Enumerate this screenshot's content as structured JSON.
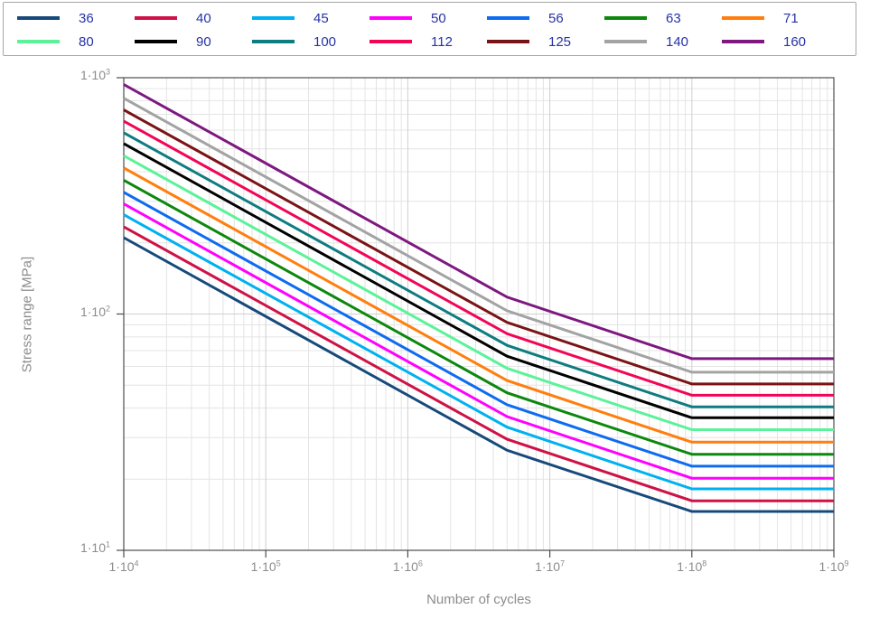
{
  "chart_data": {
    "type": "line",
    "title": "",
    "xlabel": "Number of cycles",
    "ylabel": "Stress range [MPa]",
    "x_scale": "log",
    "y_scale": "log",
    "xlim": [
      10000,
      1000000000
    ],
    "ylim": [
      10,
      1000
    ],
    "grid": true,
    "legend_position": "top",
    "x_ticks": [
      {
        "base": "1·10",
        "exp": "4",
        "value": 10000
      },
      {
        "base": "1·10",
        "exp": "5",
        "value": 100000
      },
      {
        "base": "1·10",
        "exp": "6",
        "value": 1000000
      },
      {
        "base": "1·10",
        "exp": "7",
        "value": 10000000
      },
      {
        "base": "1·10",
        "exp": "8",
        "value": 100000000
      },
      {
        "base": "1·10",
        "exp": "9",
        "value": 1000000000
      }
    ],
    "y_ticks": [
      {
        "base": "1·10",
        "exp": "1",
        "value": 10
      },
      {
        "base": "1·10",
        "exp": "2",
        "value": 100
      },
      {
        "base": "1·10",
        "exp": "3",
        "value": 1000
      }
    ],
    "series": [
      {
        "name": "36",
        "color": "#17497B",
        "x": [
          10000,
          5000000,
          100000000,
          1000000000
        ],
        "y": [
          210.5,
          26.5,
          14.6,
          14.6
        ]
      },
      {
        "name": "40",
        "color": "#CE1146",
        "x": [
          10000,
          5000000,
          100000000,
          1000000000
        ],
        "y": [
          233.9,
          29.5,
          16.2,
          16.2
        ]
      },
      {
        "name": "45",
        "color": "#00B0F0",
        "x": [
          10000,
          5000000,
          100000000,
          1000000000
        ],
        "y": [
          263.2,
          33.2,
          18.2,
          18.2
        ]
      },
      {
        "name": "50",
        "color": "#FF00FF",
        "x": [
          10000,
          5000000,
          100000000,
          1000000000
        ],
        "y": [
          292.4,
          36.8,
          20.2,
          20.2
        ]
      },
      {
        "name": "56",
        "color": "#0D6BF0",
        "x": [
          10000,
          5000000,
          100000000,
          1000000000
        ],
        "y": [
          327.5,
          41.3,
          22.7,
          22.7
        ]
      },
      {
        "name": "63",
        "color": "#0E870E",
        "x": [
          10000,
          5000000,
          100000000,
          1000000000
        ],
        "y": [
          368.4,
          46.4,
          25.5,
          25.5
        ]
      },
      {
        "name": "71",
        "color": "#FF7E0E",
        "x": [
          10000,
          5000000,
          100000000,
          1000000000
        ],
        "y": [
          415.2,
          52.3,
          28.7,
          28.7
        ]
      },
      {
        "name": "80",
        "color": "#5BF299",
        "x": [
          10000,
          5000000,
          100000000,
          1000000000
        ],
        "y": [
          467.8,
          58.9,
          32.4,
          32.4
        ]
      },
      {
        "name": "90",
        "color": "#000000",
        "x": [
          10000,
          5000000,
          100000000,
          1000000000
        ],
        "y": [
          526.3,
          66.3,
          36.4,
          36.4
        ]
      },
      {
        "name": "100",
        "color": "#0E7C80",
        "x": [
          10000,
          5000000,
          100000000,
          1000000000
        ],
        "y": [
          584.8,
          73.7,
          40.5,
          40.5
        ]
      },
      {
        "name": "112",
        "color": "#F20556",
        "x": [
          10000,
          5000000,
          100000000,
          1000000000
        ],
        "y": [
          655.0,
          82.5,
          45.3,
          45.3
        ]
      },
      {
        "name": "125",
        "color": "#7A1315",
        "x": [
          10000,
          5000000,
          100000000,
          1000000000
        ],
        "y": [
          731.0,
          92.1,
          50.6,
          50.6
        ]
      },
      {
        "name": "140",
        "color": "#A3A3A3",
        "x": [
          10000,
          5000000,
          100000000,
          1000000000
        ],
        "y": [
          818.7,
          103.2,
          56.7,
          56.7
        ]
      },
      {
        "name": "160",
        "color": "#7E1880",
        "x": [
          10000,
          5000000,
          100000000,
          1000000000
        ],
        "y": [
          935.7,
          117.9,
          64.7,
          64.7
        ]
      }
    ]
  },
  "colors": {
    "axis_line": "#4D4D4D",
    "grid_minor": "#E4E4E4",
    "grid_major": "#CFCFCF",
    "tick_text": "#8C8C8C",
    "axis_title_text": "#8C8C8C",
    "legend_text": "#2633A6",
    "legend_border": "#A6A6A6",
    "background": "#FFFFFF"
  }
}
